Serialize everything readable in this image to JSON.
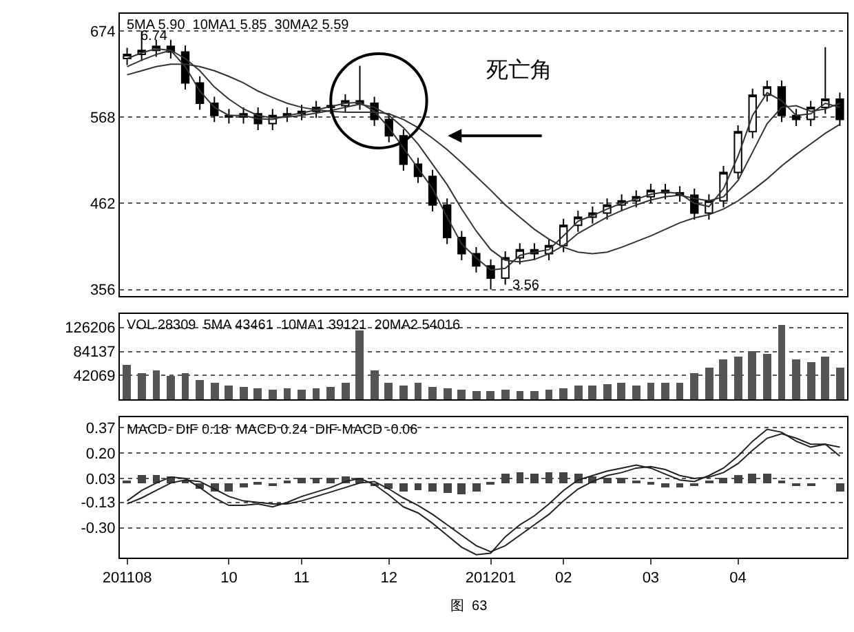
{
  "chart_data": [
    {
      "type": "candlestick",
      "annotations": [
        "5MA 5.90  10MA1 5.85  30MA2 5.59",
        "6.74",
        "3.56",
        "死亡角"
      ],
      "categories": [
        "201108",
        null,
        null,
        null,
        null,
        null,
        null,
        "10",
        null,
        null,
        null,
        null,
        "11",
        null,
        null,
        null,
        null,
        null,
        "12",
        null,
        null,
        null,
        null,
        null,
        null,
        "201201",
        null,
        null,
        null,
        null,
        "02",
        null,
        null,
        null,
        null,
        null,
        "03",
        null,
        null,
        null,
        null,
        null,
        "04",
        null,
        null,
        null,
        null,
        null,
        null,
        null
      ],
      "ohlc": [
        [
          640,
          653,
          632,
          645
        ],
        [
          645,
          674,
          637,
          650
        ],
        [
          650,
          663,
          642,
          655
        ],
        [
          655,
          663,
          640,
          648
        ],
        [
          648,
          656,
          602,
          610
        ],
        [
          610,
          618,
          577,
          585
        ],
        [
          585,
          593,
          562,
          570
        ],
        [
          570,
          578,
          560,
          568
        ],
        [
          568,
          580,
          560,
          572
        ],
        [
          572,
          580,
          552,
          560
        ],
        [
          560,
          578,
          552,
          570
        ],
        [
          570,
          580,
          562,
          572
        ],
        [
          572,
          583,
          564,
          575
        ],
        [
          575,
          588,
          567,
          580
        ],
        [
          580,
          590,
          572,
          582
        ],
        [
          582,
          596,
          574,
          588
        ],
        [
          588,
          631,
          577,
          585
        ],
        [
          585,
          593,
          557,
          565
        ],
        [
          565,
          573,
          537,
          545
        ],
        [
          545,
          553,
          502,
          510
        ],
        [
          510,
          518,
          487,
          495
        ],
        [
          495,
          503,
          452,
          460
        ],
        [
          460,
          468,
          412,
          420
        ],
        [
          420,
          428,
          392,
          400
        ],
        [
          400,
          408,
          377,
          385
        ],
        [
          385,
          393,
          356,
          370
        ],
        [
          370,
          403,
          362,
          395
        ],
        [
          395,
          413,
          387,
          405
        ],
        [
          405,
          413,
          392,
          400
        ],
        [
          400,
          418,
          392,
          410
        ],
        [
          410,
          443,
          402,
          435
        ],
        [
          435,
          453,
          427,
          445
        ],
        [
          445,
          458,
          437,
          450
        ],
        [
          450,
          468,
          442,
          460
        ],
        [
          460,
          473,
          452,
          465
        ],
        [
          465,
          478,
          457,
          470
        ],
        [
          470,
          486,
          462,
          478
        ],
        [
          478,
          486,
          467,
          475
        ],
        [
          475,
          483,
          464,
          472
        ],
        [
          472,
          480,
          442,
          450
        ],
        [
          450,
          473,
          442,
          465
        ],
        [
          465,
          508,
          457,
          500
        ],
        [
          500,
          558,
          492,
          550
        ],
        [
          550,
          603,
          542,
          595
        ],
        [
          595,
          613,
          587,
          605
        ],
        [
          605,
          613,
          562,
          570
        ],
        [
          570,
          578,
          557,
          565
        ],
        [
          565,
          588,
          557,
          580
        ],
        [
          580,
          654,
          572,
          590
        ],
        [
          590,
          598,
          557,
          565
        ]
      ],
      "color": "#000000",
      "series": [
        {
          "type": "line",
          "color": "#333333",
          "values": [
            640,
            647,
            652,
            650,
            630,
            600,
            580,
            570,
            570,
            566,
            565,
            570,
            573,
            577,
            581,
            585,
            586,
            575,
            555,
            530,
            505,
            480,
            445,
            412,
            395,
            380,
            382,
            398,
            402,
            405,
            422,
            440,
            447,
            455,
            462,
            467,
            473,
            476,
            474,
            462,
            458,
            480,
            520,
            570,
            598,
            588,
            570,
            572,
            585,
            580
          ]
        },
        {
          "type": "line",
          "color": "#333333",
          "values": [
            630,
            638,
            645,
            650,
            640,
            625,
            605,
            590,
            578,
            570,
            567,
            568,
            570,
            573,
            576,
            580,
            584,
            580,
            570,
            555,
            535,
            510,
            485,
            455,
            428,
            405,
            392,
            390,
            393,
            400,
            410,
            425,
            435,
            445,
            453,
            460,
            466,
            470,
            472,
            468,
            465,
            470,
            490,
            525,
            560,
            580,
            582,
            575,
            578,
            585
          ]
        },
        {
          "type": "line",
          "color": "#333333",
          "values": [
            620,
            625,
            630,
            633,
            633,
            630,
            625,
            618,
            610,
            600,
            592,
            585,
            580,
            577,
            575,
            574,
            574,
            574,
            572,
            565,
            555,
            542,
            528,
            512,
            495,
            478,
            460,
            445,
            430,
            418,
            408,
            402,
            400,
            402,
            408,
            415,
            422,
            430,
            438,
            444,
            448,
            455,
            465,
            478,
            492,
            508,
            522,
            535,
            548,
            559
          ]
        }
      ],
      "ylim": [
        348,
        695
      ],
      "yticks": [
        674,
        568,
        462,
        356
      ],
      "grid": "y",
      "tick_labels": "y"
    },
    {
      "type": "bar",
      "annotations": [
        "VOL 28309  5MA 43461  10MA1 39121  20MA2 54016"
      ],
      "categories": [
        "201108",
        null,
        null,
        null,
        null,
        null,
        null,
        "10",
        null,
        null,
        null,
        null,
        "11",
        null,
        null,
        null,
        null,
        null,
        "12",
        null,
        null,
        null,
        null,
        null,
        null,
        "201201",
        null,
        null,
        null,
        null,
        "02",
        null,
        null,
        null,
        null,
        null,
        "03",
        null,
        null,
        null,
        null,
        null,
        "04",
        null,
        null,
        null,
        null,
        null,
        null,
        null
      ],
      "values": [
        60000,
        45000,
        50000,
        40000,
        45000,
        35000,
        30000,
        25000,
        22000,
        20000,
        18000,
        20000,
        18000,
        20000,
        22000,
        30000,
        120000,
        50000,
        28000,
        25000,
        30000,
        22000,
        20000,
        18000,
        15000,
        15000,
        18000,
        15000,
        14000,
        18000,
        20000,
        25000,
        24000,
        26000,
        28000,
        25000,
        30000,
        28000,
        30000,
        45000,
        55000,
        70000,
        75000,
        85000,
        80000,
        130000,
        70000,
        65000,
        75000,
        55000
      ],
      "color": "#555555",
      "ylim": [
        0,
        150000
      ],
      "yticks": [
        42069,
        84137,
        126206
      ],
      "grid": "y",
      "tick_labels": "y"
    },
    {
      "type": "line",
      "annotations": [
        "MACD- DIF 0.18  MACD 0.24  DIF-MACD -0.06",
        "图  63"
      ],
      "categories": [
        "201108",
        null,
        null,
        null,
        null,
        null,
        null,
        "10",
        null,
        null,
        null,
        null,
        "11",
        null,
        null,
        null,
        null,
        null,
        "12",
        null,
        null,
        null,
        null,
        null,
        null,
        "201201",
        null,
        null,
        null,
        null,
        "02",
        null,
        null,
        null,
        null,
        null,
        "03",
        null,
        null,
        null,
        null,
        null,
        "04",
        null,
        null,
        null,
        null,
        null,
        null,
        null
      ],
      "series": [
        {
          "type": "bar",
          "color": "#444444",
          "values": [
            0.02,
            0.05,
            0.05,
            0.04,
            0.01,
            -0.04,
            -0.06,
            -0.06,
            -0.03,
            -0.01,
            -0.02,
            0.01,
            0.03,
            0.03,
            0.03,
            0.04,
            0.03,
            -0.02,
            -0.04,
            -0.06,
            -0.05,
            -0.06,
            -0.07,
            -0.08,
            -0.06,
            -0.01,
            0.06,
            0.07,
            0.06,
            0.07,
            0.07,
            0.06,
            0.04,
            0.03,
            0.03,
            0.02,
            -0.01,
            -0.03,
            -0.03,
            -0.02,
            0.01,
            0.03,
            0.05,
            0.06,
            0.06,
            0.01,
            -0.02,
            -0.02,
            0.0,
            -0.06
          ]
        },
        {
          "type": "line",
          "color": "#222222",
          "values": [
            -0.12,
            -0.05,
            0.0,
            0.04,
            0.03,
            -0.03,
            -0.1,
            -0.15,
            -0.15,
            -0.14,
            -0.16,
            -0.13,
            -0.09,
            -0.06,
            -0.03,
            0.01,
            0.03,
            -0.01,
            -0.08,
            -0.16,
            -0.2,
            -0.27,
            -0.35,
            -0.43,
            -0.48,
            -0.47,
            -0.36,
            -0.28,
            -0.22,
            -0.14,
            -0.05,
            0.02,
            0.05,
            0.08,
            0.1,
            0.12,
            0.1,
            0.06,
            0.02,
            0.01,
            0.05,
            0.1,
            0.18,
            0.28,
            0.36,
            0.34,
            0.28,
            0.24,
            0.26,
            0.18
          ]
        },
        {
          "type": "line",
          "color": "#222222",
          "values": [
            -0.14,
            -0.1,
            -0.05,
            0.0,
            0.02,
            0.01,
            -0.04,
            -0.09,
            -0.12,
            -0.13,
            -0.14,
            -0.14,
            -0.12,
            -0.09,
            -0.06,
            -0.03,
            0.0,
            0.01,
            -0.04,
            -0.1,
            -0.15,
            -0.21,
            -0.28,
            -0.35,
            -0.42,
            -0.46,
            -0.42,
            -0.35,
            -0.28,
            -0.21,
            -0.12,
            -0.04,
            0.01,
            0.05,
            0.07,
            0.1,
            0.11,
            0.09,
            0.05,
            0.03,
            0.04,
            0.07,
            0.13,
            0.22,
            0.3,
            0.33,
            0.3,
            0.26,
            0.26,
            0.24
          ]
        }
      ],
      "ylim": [
        -0.5,
        0.44
      ],
      "yticks": [
        0.37,
        {
          "value": 0.2,
          "label": "0.20"
        },
        0.03,
        -0.13,
        {
          "value": -0.3,
          "label": "-0.30"
        }
      ],
      "grid": "y"
    }
  ]
}
